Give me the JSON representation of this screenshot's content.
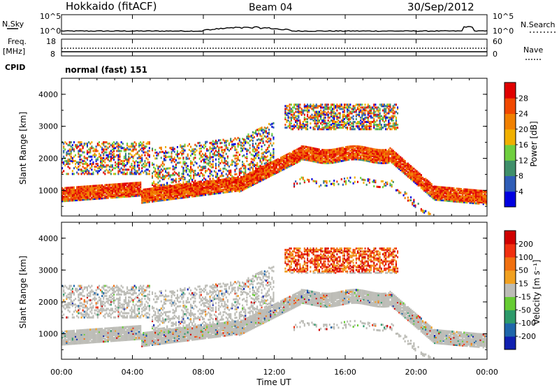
{
  "header": {
    "site": "Hokkaido (fitACF)",
    "beam": "Beam 04",
    "date": "30/Sep/2012"
  },
  "aux_panels": {
    "nsky_label": "N.Sky",
    "nsearch_label": "N.Search",
    "noise_ticks": [
      "10^5",
      "10^0"
    ],
    "freq_label": "Freq.",
    "freq_unit": "[MHz]",
    "freq_ticks": [
      "18",
      "8"
    ],
    "nave_label": "Nave",
    "nave_ticks": [
      "60",
      "0"
    ],
    "cpid_label": "CPID",
    "cpid_value": "normal (fast) 151"
  },
  "colors": {
    "power_scale": [
      "#0000e0",
      "#2f5db7",
      "#3f8f6a",
      "#6fcf3f",
      "#f0b000",
      "#f08000",
      "#f04800",
      "#e00000"
    ],
    "velocity_scale": [
      "#1020b0",
      "#1f66aa",
      "#2d9a6a",
      "#66cc33",
      "#bcbcb6",
      "#f0a020",
      "#f07010",
      "#f03010",
      "#d00000"
    ]
  },
  "chart_data": [
    {
      "type": "heatmap",
      "name": "power",
      "ylabel": "Slant Range [km]",
      "colorbar_label": "Power [dB]",
      "colorbar_ticks": [
        "28",
        "24",
        "20",
        "16",
        "12",
        "8",
        "4"
      ],
      "xlim": [
        0,
        24
      ],
      "ylim": [
        200,
        4500
      ],
      "yticks": [
        "4000",
        "3000",
        "2000",
        "1000"
      ]
    },
    {
      "type": "heatmap",
      "name": "velocity",
      "ylabel": "Slant Range [km]",
      "colorbar_label": "Velocity [m s⁻¹]",
      "colorbar_ticks": [
        "200",
        "100",
        "50",
        "15",
        "-15",
        "-50",
        "-100",
        "-200"
      ],
      "xlim": [
        0,
        24
      ],
      "ylim": [
        200,
        4500
      ],
      "yticks": [
        "4000",
        "3000",
        "2000",
        "1000"
      ],
      "xticks": [
        "00:00",
        "04:00",
        "08:00",
        "12:00",
        "16:00",
        "20:00",
        "00:00"
      ],
      "xlabel": "Time UT"
    }
  ]
}
